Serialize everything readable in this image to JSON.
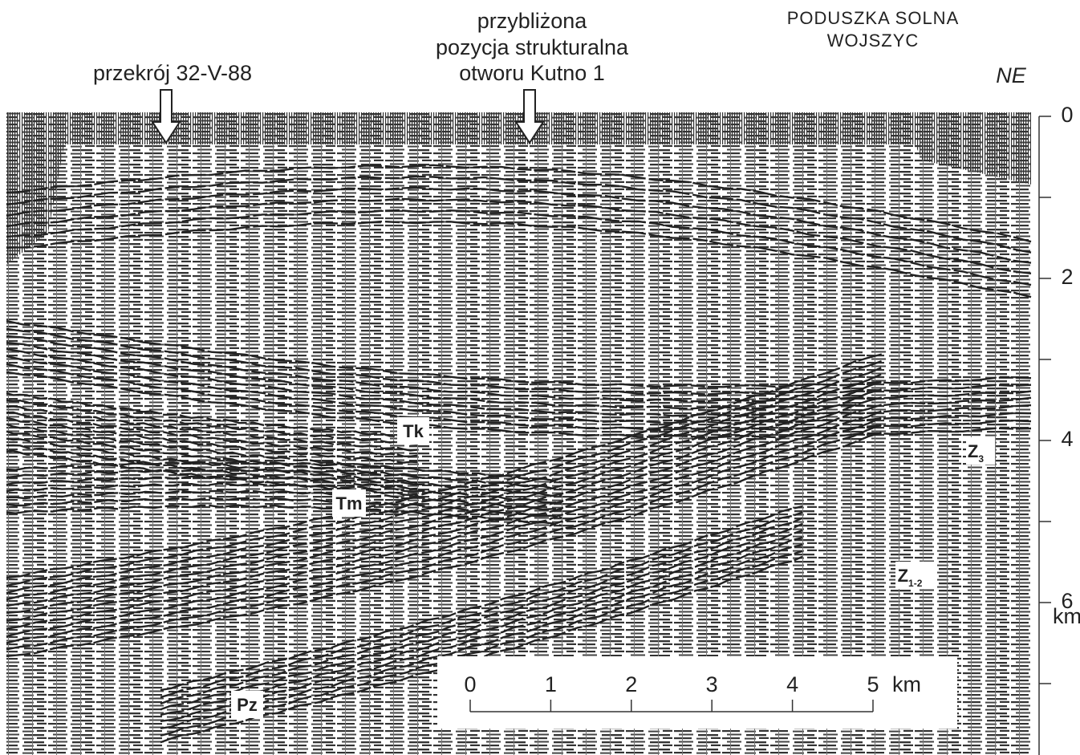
{
  "header": {
    "left_label": "przekrój 32-V-88",
    "center_label": [
      "przybliżona",
      "pozycja strukturalna",
      "otworu Kutno 1"
    ],
    "right_label": [
      "PODUSZKA SOLNA",
      "WOJSZYC"
    ],
    "direction": "NE"
  },
  "depth_axis": {
    "ticks": [
      "0",
      "2",
      "4",
      "6"
    ],
    "unit": "km"
  },
  "scale_bar": {
    "ticks": [
      "0",
      "1",
      "2",
      "3",
      "4",
      "5"
    ],
    "unit": "km"
  },
  "horizons": [
    {
      "label": "Tk"
    },
    {
      "label": "Tm"
    },
    {
      "label": "Z",
      "subscript": "3"
    },
    {
      "label": "Z",
      "subscript": "1-2"
    },
    {
      "label": "Pz"
    }
  ]
}
